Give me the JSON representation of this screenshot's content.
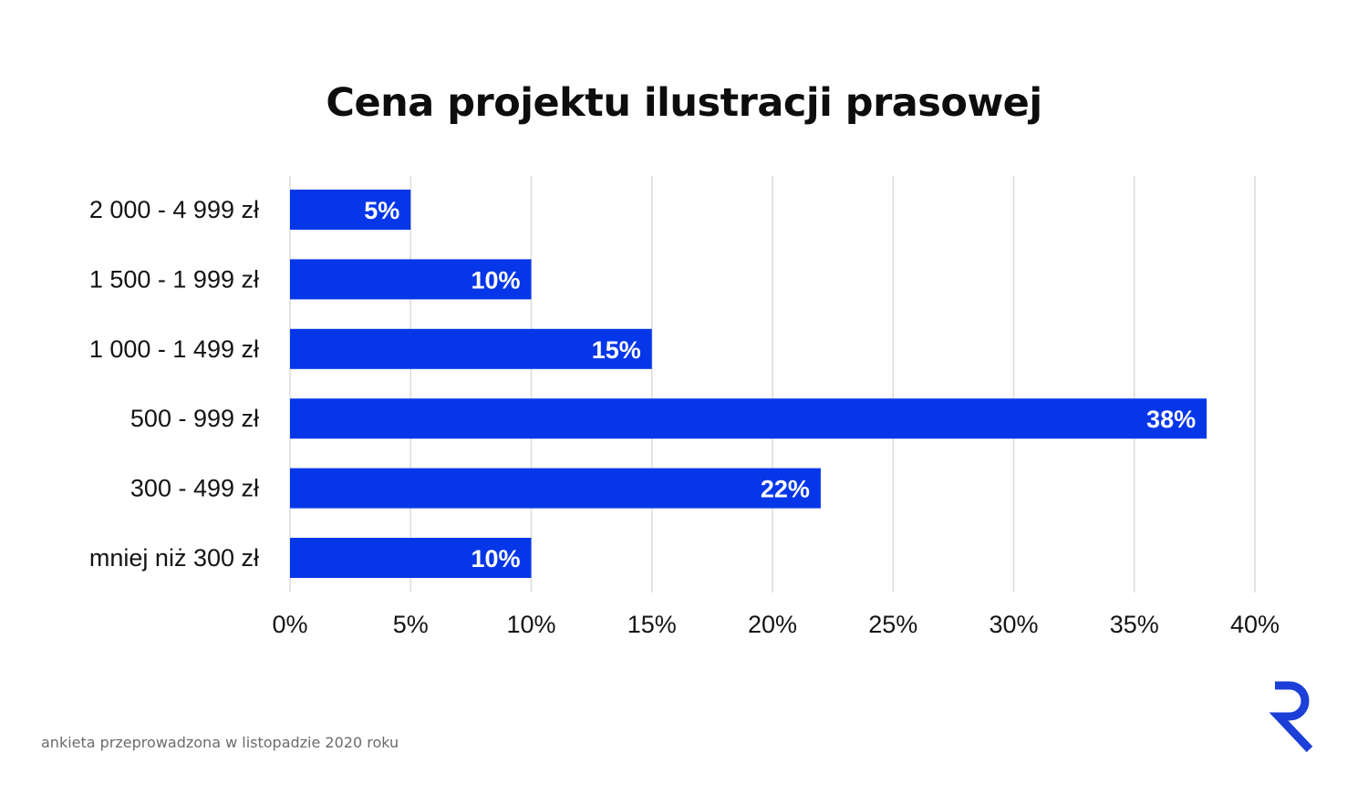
{
  "chart_data": {
    "type": "bar",
    "orientation": "horizontal",
    "title": "Cena projektu ilustracji prasowej",
    "categories": [
      "2 000 - 4 999 zł",
      "1 500 - 1 999 zł",
      "1 000 - 1 499 zł",
      "500 - 999 zł",
      "300 - 499 zł",
      "mniej niż 300 zł"
    ],
    "values": [
      5,
      10,
      15,
      38,
      22,
      10
    ],
    "data_labels": [
      "5%",
      "10%",
      "15%",
      "38%",
      "22%",
      "10%"
    ],
    "xlim": [
      0,
      40
    ],
    "x_ticks": [
      0,
      5,
      10,
      15,
      20,
      25,
      30,
      35,
      40
    ],
    "x_tick_labels": [
      "0%",
      "5%",
      "10%",
      "15%",
      "20%",
      "25%",
      "30%",
      "35%",
      "40%"
    ],
    "xlabel": "",
    "ylabel": "",
    "grid": "vertical",
    "legend": "none"
  },
  "footnote": "ankieta przeprowadzona w listopadzie 2020 roku",
  "logo_icon": "r-logo-icon",
  "colors": {
    "bar": "#0537e8",
    "grid": "#dcdcdc",
    "logo": "#1c3fd8"
  }
}
